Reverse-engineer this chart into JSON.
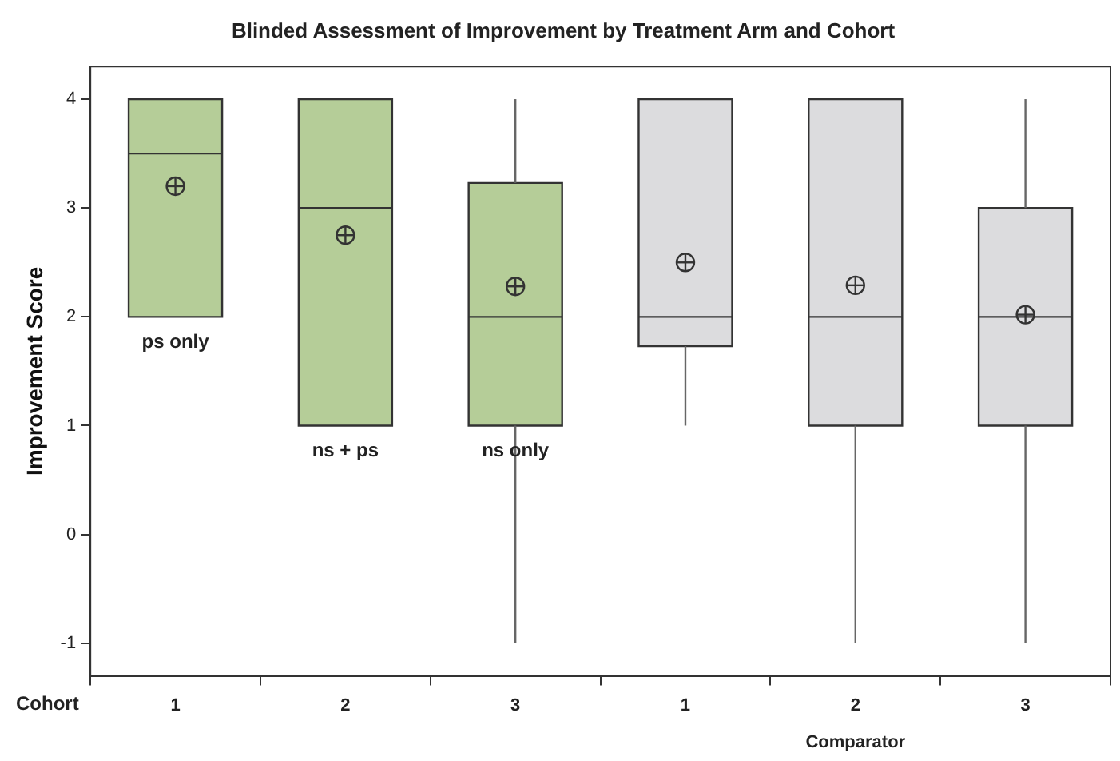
{
  "chart_data": {
    "type": "box",
    "title": "Blinded Assessment of Improvement by Treatment Arm and Cohort",
    "xlabel": "Cohort",
    "ylabel": "Improvement Score",
    "categories": [
      "1",
      "2",
      "3",
      "1",
      "2",
      "3"
    ],
    "colors": [
      "#b5cd98",
      "#b5cd98",
      "#b5cd98",
      "#dcdcde",
      "#dcdcde",
      "#dcdcde"
    ],
    "boxes": [
      {
        "low": 2,
        "q1": 2,
        "median": 3.5,
        "q3": 4,
        "high": 4,
        "mean": 3.2
      },
      {
        "low": 1,
        "q1": 1,
        "median": 3,
        "q3": 4,
        "high": 4,
        "mean": 2.75
      },
      {
        "low": -1,
        "q1": 1,
        "median": 2,
        "q3": 3.23,
        "high": 4,
        "mean": 2.28
      },
      {
        "low": 1,
        "q1": 1.73,
        "median": 2,
        "q3": 4,
        "high": 4,
        "mean": 2.5
      },
      {
        "low": -1,
        "q1": 1,
        "median": 2,
        "q3": 4,
        "high": 4,
        "mean": 2.29
      },
      {
        "low": -1,
        "q1": 1,
        "median": 2,
        "q3": 3,
        "high": 4,
        "mean": 2.02
      }
    ],
    "ylim": [
      -1.3,
      4.3
    ],
    "yticks": [
      -1,
      0,
      1,
      2,
      3,
      4
    ],
    "grid": false,
    "legend": false,
    "annotations": [
      {
        "text": "ps only",
        "x": "1",
        "y": 2
      },
      {
        "text": "ns + ps",
        "x": "2",
        "y": 1
      },
      {
        "text": "ns only",
        "x": "3",
        "y": 1
      },
      "Comparator"
    ]
  }
}
